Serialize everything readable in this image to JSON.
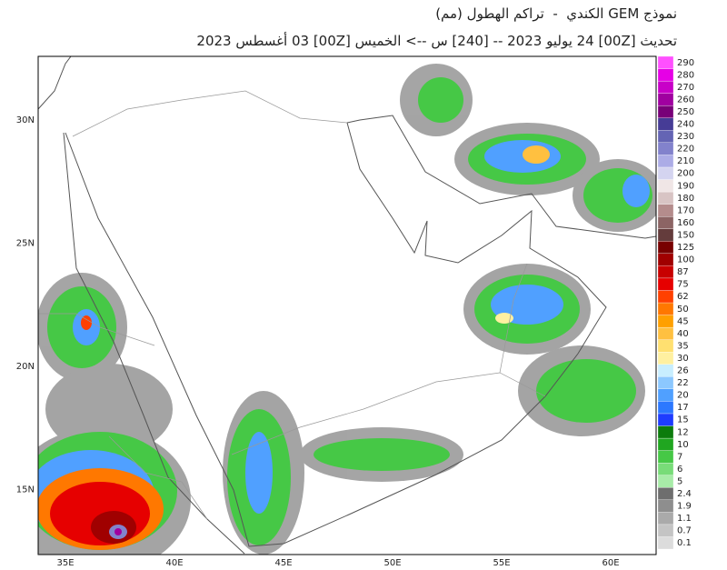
{
  "header": {
    "title": "نموذج GEM الكندي  -  تراكم الهطول (مم)",
    "subtitle": "تحديث [00Z] 24 يوليو 2023 -- [240] س --> الخميس [00Z] 03 أغسطس 2023"
  },
  "map": {
    "lat_labels": [
      "30N",
      "25N",
      "20N",
      "15N"
    ],
    "lon_labels": [
      "35E",
      "40E",
      "45E",
      "50E",
      "55E",
      "60E"
    ]
  },
  "colorbar": {
    "levels": [
      0.1,
      0.7,
      1.1,
      1.9,
      2.4,
      5,
      6,
      7,
      10,
      12,
      15,
      17,
      20,
      22,
      26,
      30,
      35,
      40,
      45,
      50,
      62,
      75,
      87,
      100,
      125,
      150,
      160,
      170,
      180,
      190,
      200,
      210,
      220,
      230,
      240,
      250,
      260,
      270,
      280,
      290
    ],
    "colors": [
      "#dcdcdc",
      "#c4c4c4",
      "#aaaaaa",
      "#8e8e8e",
      "#6e6e6e",
      "#a8eca8",
      "#78dc78",
      "#46c846",
      "#20a620",
      "#0c7c0c",
      "#1e3cff",
      "#2c78ff",
      "#50a0ff",
      "#8cc8ff",
      "#c8eeff",
      "#fff0a0",
      "#ffe070",
      "#ffc040",
      "#ffa000",
      "#ff7800",
      "#ff4000",
      "#e60000",
      "#c80000",
      "#a00000",
      "#780000",
      "#643c3c",
      "#8c6464",
      "#b48c8c",
      "#d8c4c4",
      "#f0e6e6",
      "#d4d4f0",
      "#acace6",
      "#8282cc",
      "#6464b4",
      "#463c96",
      "#780078",
      "#a000a0",
      "#c800c8",
      "#e600e6",
      "#ff50ff"
    ]
  }
}
